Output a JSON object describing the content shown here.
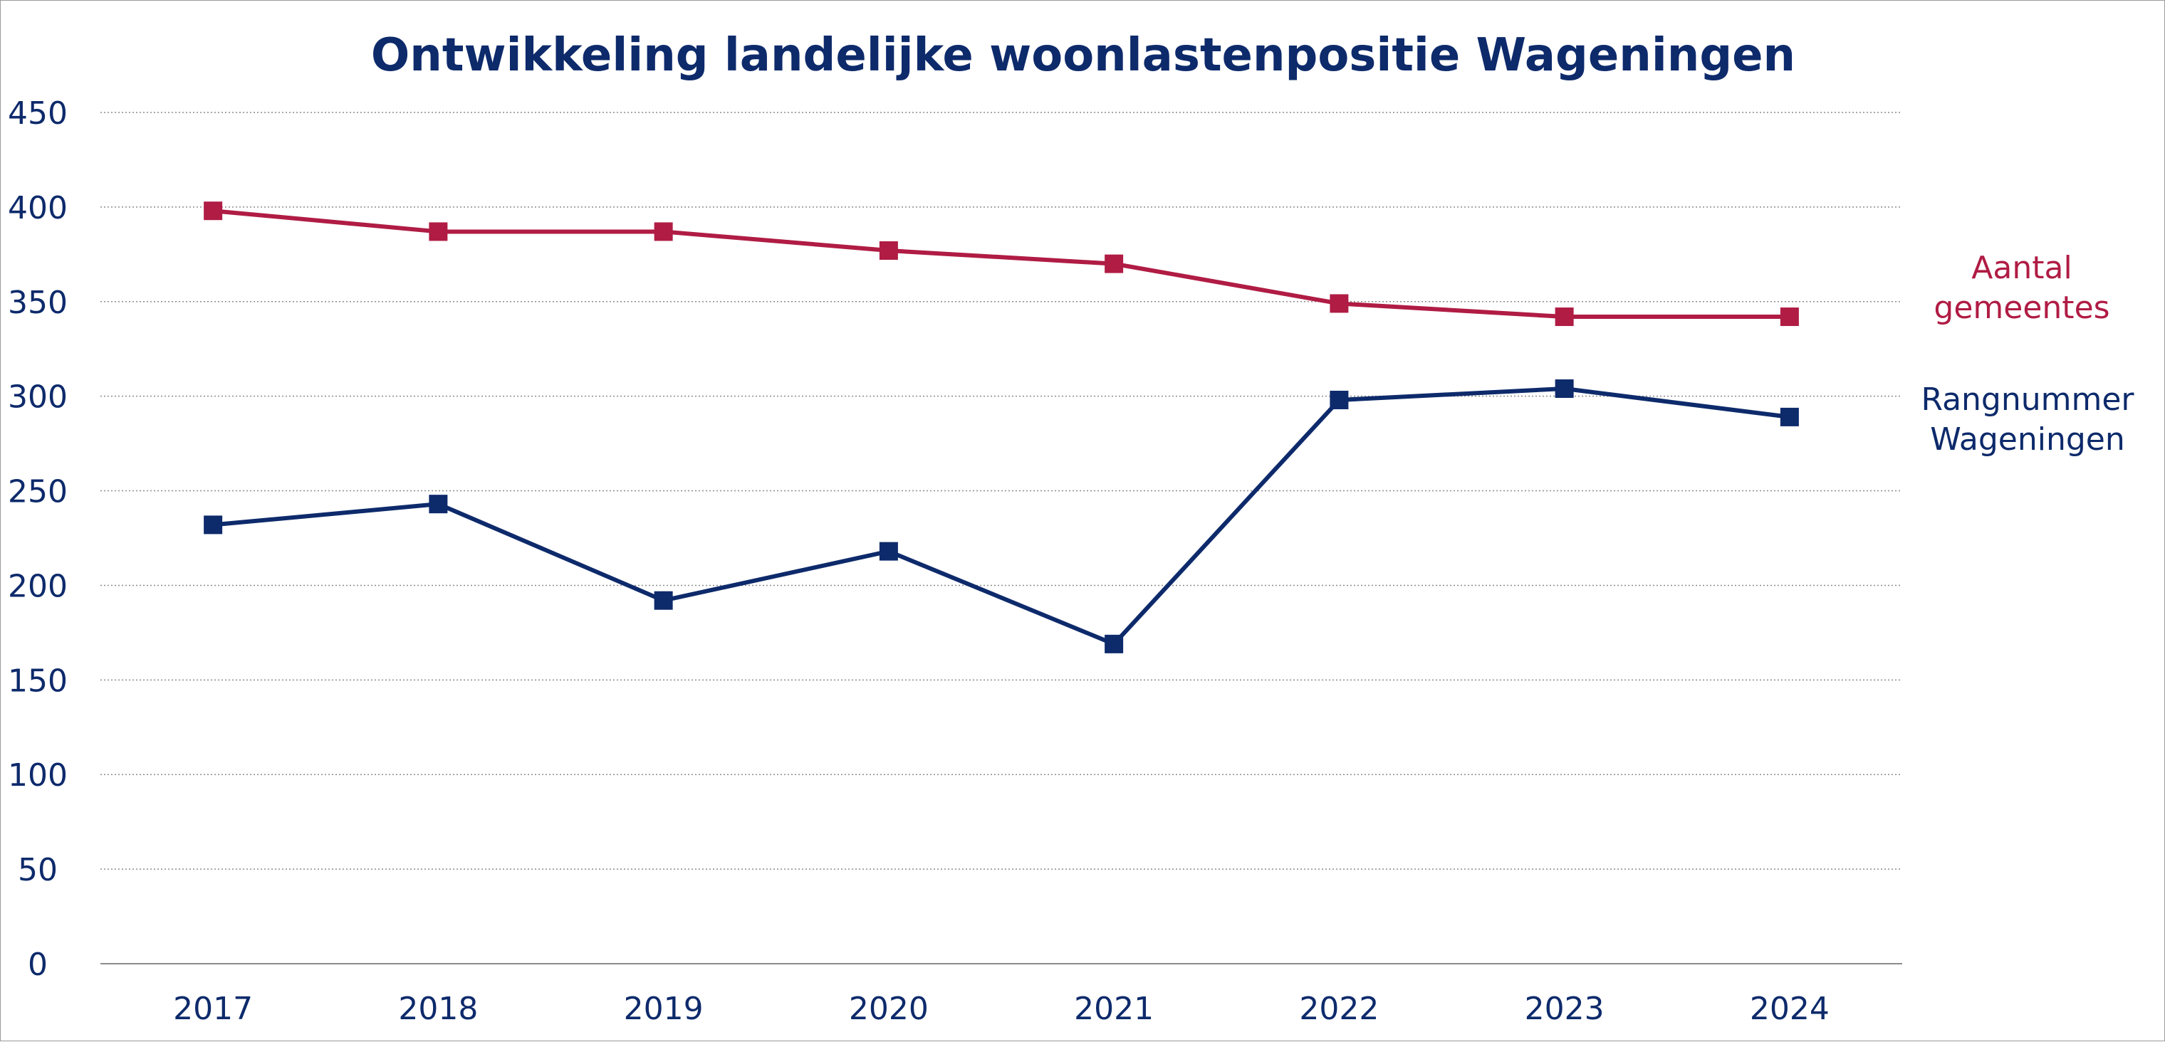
{
  "chart_data": {
    "type": "line",
    "title": "Ontwikkeling landelijke woonlastenpositie Wageningen",
    "xlabel": "",
    "ylabel": "",
    "categories": [
      "2017",
      "2018",
      "2019",
      "2020",
      "2021",
      "2022",
      "2023",
      "2024"
    ],
    "ylim": [
      0,
      450
    ],
    "yticks": [
      0,
      50,
      100,
      150,
      200,
      250,
      300,
      350,
      400,
      450
    ],
    "grid": "horizontal dotted",
    "legend": "right, labels placed next to line ends",
    "series": [
      {
        "name_lines": [
          "Aantal",
          "gemeentes"
        ],
        "color": "#b01c44",
        "marker": "square",
        "values": [
          398,
          387,
          387,
          377,
          370,
          349,
          342,
          342
        ]
      },
      {
        "name_lines": [
          "Rangnummer",
          "Wageningen"
        ],
        "color": "#0d2a6b",
        "marker": "square",
        "values": [
          232,
          243,
          192,
          218,
          169,
          298,
          304,
          289
        ]
      }
    ]
  },
  "colors": {
    "title": "#0d2a6b",
    "axis_text": "#0d2a6b",
    "grid": "#8c8c8c",
    "axis_line": "#8c8c8c"
  }
}
